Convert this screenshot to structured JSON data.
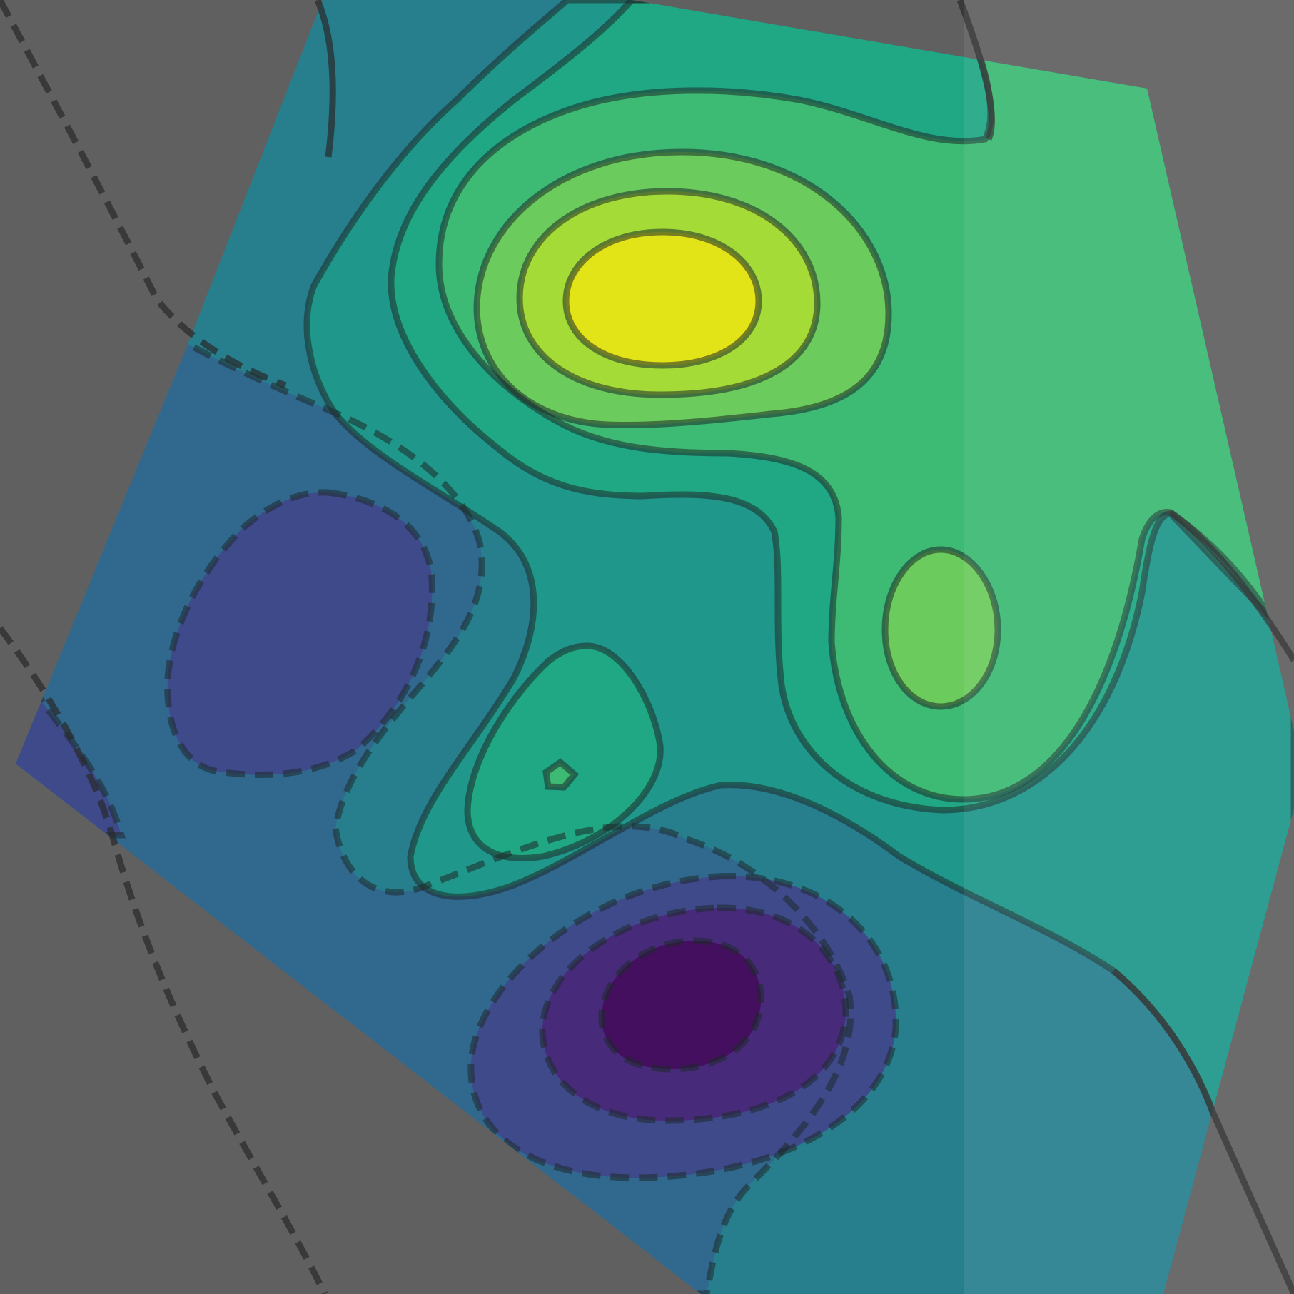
{
  "chart_data": {
    "type": "contour",
    "title": "",
    "xlabel": "",
    "ylabel": "",
    "axes_visible": false,
    "grid": false,
    "legend": "none",
    "colormap": "viridis",
    "background_color": "#606060",
    "clip_polygon": true,
    "levels": [
      {
        "level": -3,
        "linestyle": "dashed",
        "fill": "#440f5e"
      },
      {
        "level": -2,
        "linestyle": "dashed",
        "fill": "#472a7a"
      },
      {
        "level": -1,
        "linestyle": "dashed",
        "fill": "#3e4a89"
      },
      {
        "level": 0,
        "linestyle": "dashed",
        "fill": "#31688e"
      },
      {
        "level": 1,
        "linestyle": "solid",
        "fill": "#277f8e"
      },
      {
        "level": 2,
        "linestyle": "solid",
        "fill": "#1f978b"
      },
      {
        "level": 3,
        "linestyle": "solid",
        "fill": "#20a784"
      },
      {
        "level": 4,
        "linestyle": "solid",
        "fill": "#3dba73"
      },
      {
        "level": 5,
        "linestyle": "solid",
        "fill": "#6bcb5c"
      },
      {
        "level": 6,
        "linestyle": "solid",
        "fill": "#a5db36"
      },
      {
        "level": 7,
        "linestyle": "solid",
        "fill": "#e2e418"
      }
    ],
    "extrema": [
      {
        "kind": "max",
        "x": 0.51,
        "y": 0.77,
        "value": 7.2
      },
      {
        "kind": "max",
        "x": 0.73,
        "y": 0.51,
        "value": 5.2
      },
      {
        "kind": "max",
        "x": 0.44,
        "y": 0.4,
        "value": 3.3
      },
      {
        "kind": "min",
        "x": 0.24,
        "y": 0.52,
        "value": -1.3
      },
      {
        "kind": "min",
        "x": 0.52,
        "y": 0.22,
        "value": -3.3
      }
    ],
    "x_range": [
      0,
      1
    ],
    "y_range": [
      0,
      1
    ]
  }
}
